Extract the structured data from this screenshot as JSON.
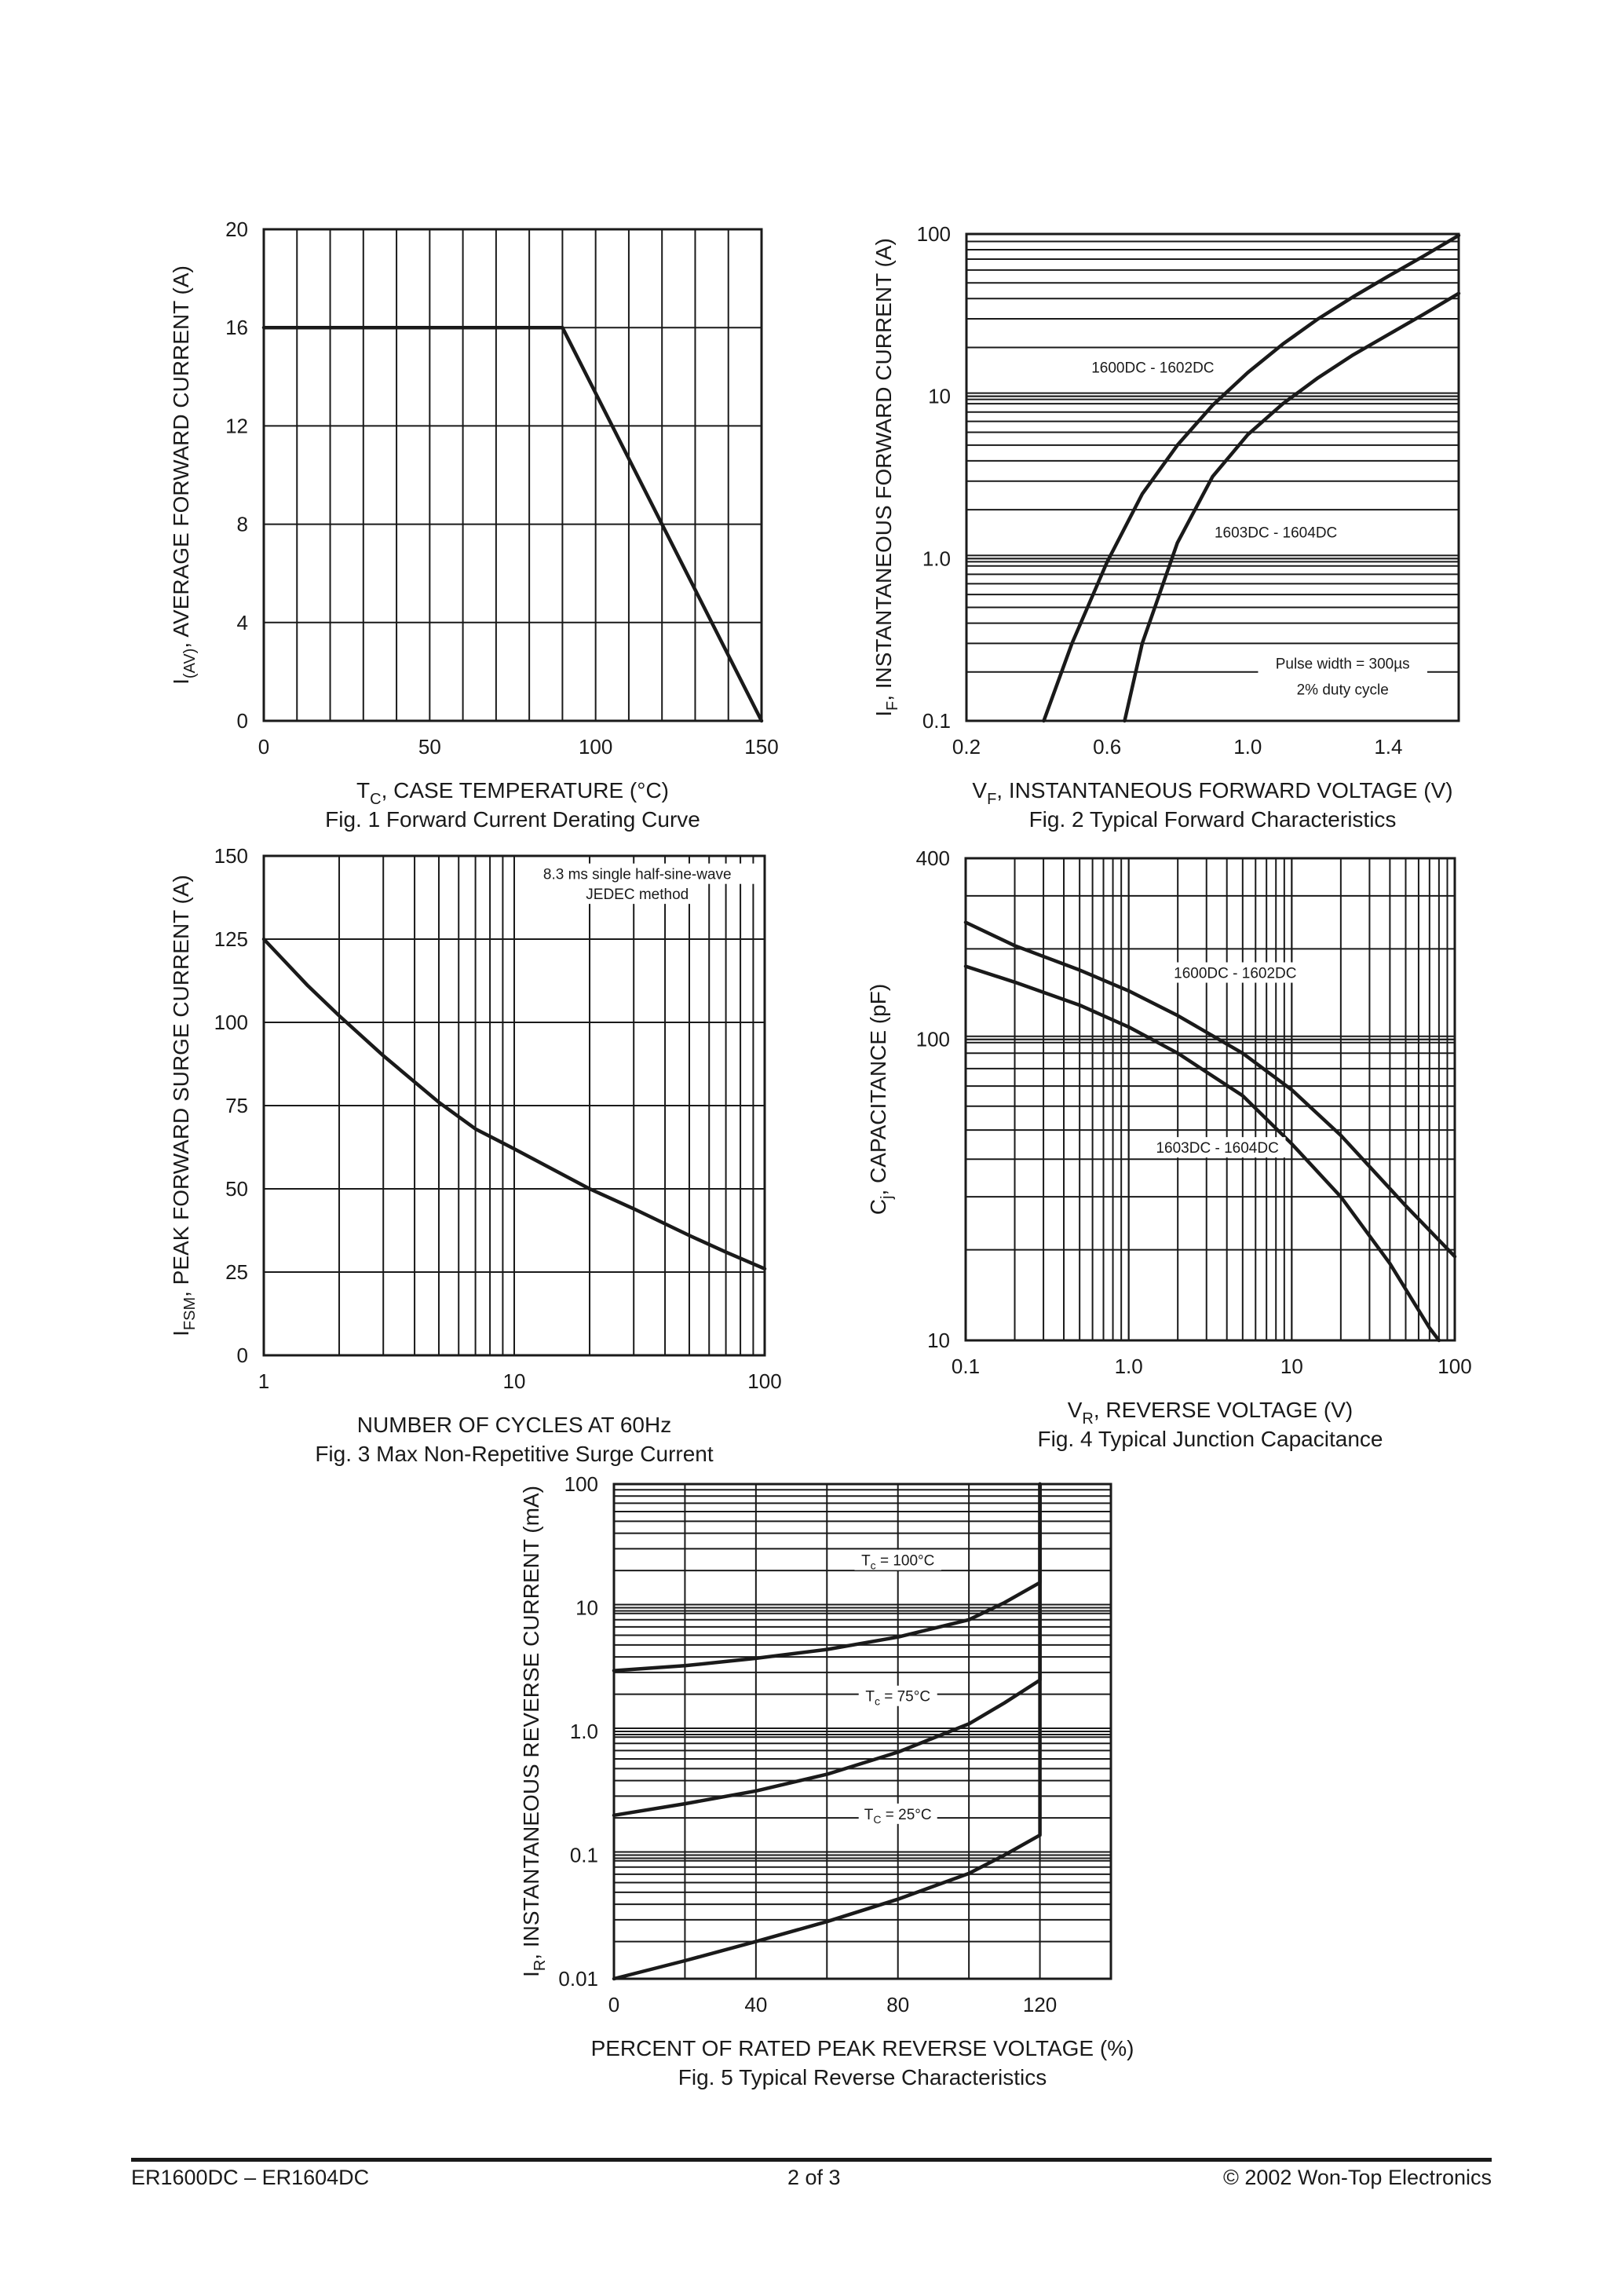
{
  "footer": {
    "left": "ER1600DC – ER1604DC",
    "center": "2 of 3",
    "right": "© 2002 Won-Top Electronics"
  },
  "chart_data": [
    {
      "id": "fig1",
      "type": "line",
      "caption": "Fig. 1  Forward Current Derating Curve",
      "xlabel": {
        "main": "T",
        "sub": "C",
        "rest": ", CASE TEMPERATURE (°C)"
      },
      "ylabel": {
        "main": "I",
        "sub": "(AV)",
        "rest": ", AVERAGE FORWARD CURRENT (A)"
      },
      "xscale": "linear",
      "yscale": "linear",
      "xlim": [
        0,
        150
      ],
      "ylim": [
        0,
        20
      ],
      "xticks": [
        0,
        50,
        100,
        150
      ],
      "xtick_labels": [
        "0",
        "50",
        "100",
        "150"
      ],
      "yticks": [
        0,
        4,
        8,
        12,
        16,
        20
      ],
      "ytick_labels": [
        "0",
        "4",
        "8",
        "12",
        "16",
        "20"
      ],
      "grid": true,
      "series": [
        {
          "x": [
            0,
            90,
            150
          ],
          "y": [
            16,
            16,
            0
          ]
        }
      ],
      "annotations": []
    },
    {
      "id": "fig2",
      "type": "line",
      "caption": "Fig. 2  Typical Forward Characteristics",
      "xlabel": {
        "main": "V",
        "sub": "F",
        "rest": ", INSTANTANEOUS FORWARD VOLTAGE (V)"
      },
      "ylabel": {
        "main": "I",
        "sub": "F",
        "rest": ", INSTANTANEOUS FORWARD CURRENT (A)"
      },
      "xscale": "linear",
      "yscale": "log",
      "xlim": [
        0.2,
        1.6
      ],
      "ylim": [
        0.1,
        100
      ],
      "xticks": [
        0.2,
        0.6,
        1.0,
        1.4
      ],
      "xtick_labels": [
        "0.2",
        "0.6",
        "1.0",
        "1.4"
      ],
      "yticks": [
        0.1,
        1,
        10,
        100
      ],
      "ytick_labels": [
        "0.1",
        "1.0",
        "10",
        "100"
      ],
      "grid": true,
      "series": [
        {
          "name": "1600DC - 1602DC",
          "x": [
            0.42,
            0.5,
            0.6,
            0.7,
            0.8,
            0.9,
            1.0,
            1.1,
            1.2,
            1.3,
            1.4,
            1.5,
            1.6
          ],
          "y": [
            0.1,
            0.3,
            0.95,
            2.5,
            5.0,
            8.8,
            14.0,
            21.0,
            30.0,
            41.0,
            55.0,
            73.0,
            98.0
          ]
        },
        {
          "name": "1603DC - 1604DC",
          "x": [
            0.65,
            0.7,
            0.8,
            0.9,
            1.0,
            1.1,
            1.2,
            1.3,
            1.4,
            1.5,
            1.6
          ],
          "y": [
            0.1,
            0.3,
            1.25,
            3.2,
            5.8,
            9.0,
            13.0,
            18.0,
            24.0,
            32.0,
            43.0
          ]
        }
      ],
      "annotations": [
        {
          "text": "1600DC - 1602DC",
          "x": 0.73,
          "y": 14
        },
        {
          "text": "1603DC - 1604DC",
          "x": 1.08,
          "y": 1.35
        },
        {
          "text": "Pulse width = 300µs",
          "x": 1.27,
          "y": 0.21
        },
        {
          "text": "2% duty cycle",
          "x": 1.27,
          "y": 0.145
        }
      ]
    },
    {
      "id": "fig3",
      "type": "line",
      "caption": "Fig. 3  Max Non-Repetitive Surge Current",
      "xlabel": {
        "main": "NUMBER OF CYCLES AT 60Hz",
        "sub": "",
        "rest": ""
      },
      "ylabel": {
        "main": "I",
        "sub": "FSM",
        "rest": ", PEAK FORWARD SURGE CURRENT (A)"
      },
      "xscale": "log",
      "yscale": "linear",
      "xlim": [
        1,
        100
      ],
      "ylim": [
        0,
        150
      ],
      "xticks": [
        1,
        10,
        100
      ],
      "xtick_labels": [
        "1",
        "10",
        "100"
      ],
      "yticks": [
        0,
        25,
        50,
        75,
        100,
        125,
        150
      ],
      "ytick_labels": [
        "0",
        "25",
        "50",
        "75",
        "100",
        "125",
        "150"
      ],
      "grid": true,
      "series": [
        {
          "x": [
            1,
            1.5,
            2,
            3,
            5,
            7,
            10,
            20,
            30,
            50,
            70,
            100
          ],
          "y": [
            125,
            111,
            102,
            90,
            76,
            68,
            62,
            50,
            44,
            36,
            31,
            26
          ]
        }
      ],
      "annotations": [
        {
          "text": "8.3 ms single half-sine-wave",
          "x": 31,
          "y": 143
        },
        {
          "text": "JEDEC method",
          "x": 31,
          "y": 137
        }
      ]
    },
    {
      "id": "fig4",
      "type": "line",
      "caption": "Fig. 4  Typical Junction Capacitance",
      "xlabel": {
        "main": "V",
        "sub": "R",
        "rest": ", REVERSE VOLTAGE (V)"
      },
      "ylabel": {
        "main": "C",
        "sub": "j",
        "rest": ", CAPACITANCE (pF)"
      },
      "xscale": "log",
      "yscale": "log",
      "xlim": [
        0.1,
        100
      ],
      "ylim": [
        10,
        400
      ],
      "xticks": [
        0.1,
        1,
        10,
        100
      ],
      "xtick_labels": [
        "0.1",
        "1.0",
        "10",
        "100"
      ],
      "yticks": [
        10,
        100,
        400
      ],
      "ytick_labels": [
        "10",
        "100",
        "400"
      ],
      "grid": true,
      "series": [
        {
          "name": "1600DC - 1602DC",
          "x": [
            0.1,
            0.2,
            0.5,
            1,
            2,
            5,
            10,
            20,
            50,
            100
          ],
          "y": [
            245,
            205,
            170,
            145,
            120,
            90,
            68,
            48,
            28,
            19
          ]
        },
        {
          "name": "1603DC - 1604DC",
          "x": [
            0.1,
            0.2,
            0.5,
            1,
            2,
            5,
            10,
            20,
            40,
            70,
            80
          ],
          "y": [
            175,
            155,
            130,
            110,
            90,
            65,
            45,
            30,
            18,
            11,
            10
          ]
        }
      ],
      "annotations": [
        {
          "text": "1600DC - 1602DC",
          "x": 4.5,
          "y": 160
        },
        {
          "text": "1603DC - 1604DC",
          "x": 3.5,
          "y": 42
        }
      ]
    },
    {
      "id": "fig5",
      "type": "line",
      "caption": "Fig. 5  Typical Reverse Characteristics",
      "xlabel": {
        "main": "PERCENT OF RATED PEAK REVERSE VOLTAGE (%)",
        "sub": "",
        "rest": ""
      },
      "ylabel": {
        "main": "I",
        "sub": "R",
        "rest": ", INSTANTANEOUS REVERSE CURRENT (mA)"
      },
      "xscale": "linear",
      "yscale": "log",
      "xlim": [
        0,
        140
      ],
      "ylim": [
        0.01,
        100
      ],
      "xticks": [
        0,
        40,
        80,
        120
      ],
      "xtick_labels": [
        "0",
        "40",
        "80",
        "120"
      ],
      "yticks": [
        0.01,
        0.1,
        1,
        10,
        100
      ],
      "ytick_labels": [
        "0.01",
        "0.1",
        "1.0",
        "10",
        "100"
      ],
      "grid": true,
      "series": [
        {
          "name": "Tc = 100°C",
          "x": [
            0,
            20,
            40,
            60,
            80,
            100,
            110,
            120,
            120
          ],
          "y": [
            3.1,
            3.4,
            3.9,
            4.6,
            5.8,
            8.0,
            11.0,
            16.0,
            100
          ]
        },
        {
          "name": "Tc = 75°C",
          "x": [
            0,
            20,
            40,
            60,
            80,
            100,
            110,
            120,
            120
          ],
          "y": [
            0.21,
            0.26,
            0.33,
            0.45,
            0.68,
            1.15,
            1.7,
            2.6,
            100
          ]
        },
        {
          "name": "Tc = 25°C",
          "x": [
            0,
            20,
            40,
            60,
            80,
            100,
            110,
            120,
            120
          ],
          "y": [
            0.01,
            0.014,
            0.02,
            0.029,
            0.044,
            0.071,
            0.1,
            0.145,
            100
          ]
        }
      ],
      "annotations": [
        {
          "text": "T",
          "sub": "c",
          "rest": " = 100°C",
          "x": 80,
          "y": 22
        },
        {
          "text": "T",
          "sub": "c",
          "rest": " = 75°C",
          "x": 80,
          "y": 1.75
        },
        {
          "text": "T",
          "sub": "C",
          "rest": " = 25°C",
          "x": 80,
          "y": 0.195
        }
      ]
    }
  ]
}
